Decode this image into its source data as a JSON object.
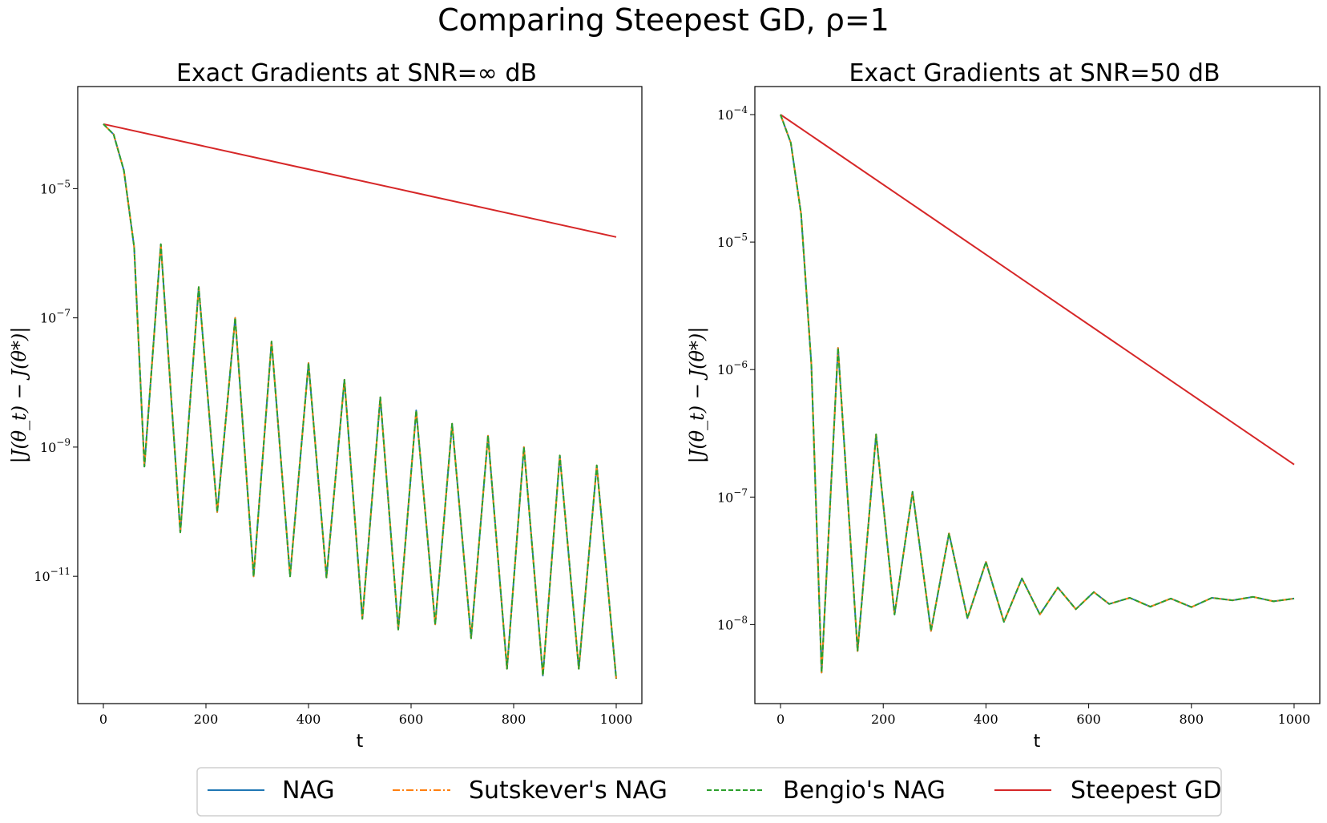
{
  "figure": {
    "title": "Comparing Steepest GD, ρ=1"
  },
  "legend": {
    "placement": "bottom-center",
    "items": [
      {
        "label": "NAG",
        "color": "#1f77b4",
        "dash": "solid"
      },
      {
        "label": "Sutskever's NAG",
        "color": "#ff7f0e",
        "dash": "dashdot"
      },
      {
        "label": "Bengio's NAG",
        "color": "#2ca02c",
        "dash": "dashed"
      },
      {
        "label": "Steepest GD",
        "color": "#d62728",
        "dash": "solid"
      }
    ]
  },
  "chart_data": [
    {
      "type": "line",
      "title": "Exact Gradients at SNR=∞ dB",
      "xlabel": "t",
      "ylabel": "|J(θ_t) − J(θ*)|",
      "xlim": [
        -50,
        1050
      ],
      "ylim_log10": [
        -12.97,
        -3.42
      ],
      "yscale": "log",
      "grid": false,
      "xticks": [
        "0",
        "200",
        "400",
        "600",
        "800",
        "1000"
      ],
      "xtick_values": [
        0,
        200,
        400,
        600,
        800,
        1000
      ],
      "yticks": [
        {
          "base": "10",
          "exp": "−5",
          "value_log10": -5
        },
        {
          "base": "10",
          "exp": "−7",
          "value_log10": -7
        },
        {
          "base": "10",
          "exp": "−9",
          "value_log10": -9
        },
        {
          "base": "10",
          "exp": "−11",
          "value_log10": -11
        }
      ],
      "series": [
        {
          "name": "Steepest GD",
          "x": [
            0,
            1000
          ],
          "y": [
            0.0001,
            1.78e-06
          ]
        },
        {
          "name": "NAG",
          "x": [
            0,
            20,
            40,
            60,
            80,
            112,
            150,
            186,
            222,
            257,
            293,
            328,
            364,
            400,
            435,
            470,
            505,
            540,
            575,
            610,
            647,
            680,
            717,
            750,
            787,
            820,
            857,
            890,
            927,
            962,
            1000
          ],
          "y": [
            0.0001,
            6.92e-05,
            1.91e-05,
            1.25e-06,
            5e-10,
            1.38e-06,
            4.8e-11,
            3e-07,
            9.9e-11,
            1e-07,
            1e-11,
            4.3e-08,
            1e-11,
            2e-08,
            9.6e-12,
            1.1e-08,
            2.2e-12,
            5.9e-09,
            1.5e-12,
            3.7e-09,
            1.8e-12,
            2.3e-09,
            1.1e-12,
            1.5e-09,
            3.7e-13,
            1e-09,
            2.9e-13,
            7.4e-10,
            3.7e-13,
            5.2e-10,
            2.6e-13
          ]
        },
        {
          "name": "Sutskever's NAG",
          "x": [
            0,
            20,
            40,
            60,
            80,
            112,
            150,
            186,
            222,
            257,
            293,
            328,
            364,
            400,
            435,
            470,
            505,
            540,
            575,
            610,
            647,
            680,
            717,
            750,
            787,
            820,
            857,
            890,
            927,
            962,
            1000
          ],
          "y": [
            0.0001,
            6.92e-05,
            1.91e-05,
            1.25e-06,
            5e-10,
            1.38e-06,
            4.8e-11,
            3e-07,
            9.9e-11,
            1e-07,
            1e-11,
            4.3e-08,
            1e-11,
            2e-08,
            9.6e-12,
            1.1e-08,
            2.2e-12,
            5.9e-09,
            1.5e-12,
            3.7e-09,
            1.8e-12,
            2.3e-09,
            1.1e-12,
            1.5e-09,
            3.7e-13,
            1e-09,
            2.9e-13,
            7.4e-10,
            3.7e-13,
            5.2e-10,
            2.6e-13
          ]
        },
        {
          "name": "Bengio's NAG",
          "x": [
            0,
            20,
            40,
            60,
            80,
            112,
            150,
            186,
            222,
            257,
            293,
            328,
            364,
            400,
            435,
            470,
            505,
            540,
            575,
            610,
            647,
            680,
            717,
            750,
            787,
            820,
            857,
            890,
            927,
            962,
            1000
          ],
          "y": [
            0.0001,
            6.92e-05,
            1.91e-05,
            1.25e-06,
            5e-10,
            1.38e-06,
            4.8e-11,
            3e-07,
            9.9e-11,
            1e-07,
            1e-11,
            4.3e-08,
            1e-11,
            2e-08,
            9.6e-12,
            1.1e-08,
            2.2e-12,
            5.9e-09,
            1.5e-12,
            3.7e-09,
            1.8e-12,
            2.3e-09,
            1.1e-12,
            1.5e-09,
            3.7e-13,
            1e-09,
            2.9e-13,
            7.4e-10,
            3.7e-13,
            5.2e-10,
            2.6e-13
          ]
        }
      ]
    },
    {
      "type": "line",
      "title": "Exact Gradients at SNR=50 dB",
      "xlabel": "t",
      "ylabel": "|J(θ_t) − J(θ*)|",
      "xlim": [
        -50,
        1050
      ],
      "ylim_log10": [
        -8.62,
        -3.78
      ],
      "yscale": "log",
      "grid": false,
      "xticks": [
        "0",
        "200",
        "400",
        "600",
        "800",
        "1000"
      ],
      "xtick_values": [
        0,
        200,
        400,
        600,
        800,
        1000
      ],
      "yticks": [
        {
          "base": "10",
          "exp": "−4",
          "value_log10": -4
        },
        {
          "base": "10",
          "exp": "−5",
          "value_log10": -5
        },
        {
          "base": "10",
          "exp": "−6",
          "value_log10": -6
        },
        {
          "base": "10",
          "exp": "−7",
          "value_log10": -7
        },
        {
          "base": "10",
          "exp": "−8",
          "value_log10": -8
        }
      ],
      "series": [
        {
          "name": "Steepest GD",
          "x": [
            0,
            1000
          ],
          "y": [
            0.0001,
            1.8e-07
          ]
        },
        {
          "name": "NAG",
          "x": [
            0,
            20,
            40,
            60,
            80,
            112,
            150,
            186,
            222,
            257,
            293,
            328,
            364,
            400,
            435,
            470,
            505,
            540,
            575,
            610,
            640,
            680,
            720,
            760,
            800,
            840,
            880,
            920,
            960,
            1000
          ],
          "y": [
            0.0001,
            6e-05,
            1.66e-05,
            1.1e-06,
            4.2e-09,
            1.48e-06,
            6.2e-09,
            3.1e-07,
            1.2e-08,
            1.1e-07,
            8.9e-09,
            5.2e-08,
            1.12e-08,
            3.1e-08,
            1.05e-08,
            2.3e-08,
            1.2e-08,
            1.95e-08,
            1.32e-08,
            1.8e-08,
            1.45e-08,
            1.62e-08,
            1.38e-08,
            1.6e-08,
            1.37e-08,
            1.62e-08,
            1.55e-08,
            1.65e-08,
            1.52e-08,
            1.6e-08
          ]
        },
        {
          "name": "Sutskever's NAG",
          "x": [
            0,
            20,
            40,
            60,
            80,
            112,
            150,
            186,
            222,
            257,
            293,
            328,
            364,
            400,
            435,
            470,
            505,
            540,
            575,
            610,
            640,
            680,
            720,
            760,
            800,
            840,
            880,
            920,
            960,
            1000
          ],
          "y": [
            0.0001,
            6e-05,
            1.66e-05,
            1.1e-06,
            4.2e-09,
            1.48e-06,
            6.2e-09,
            3.1e-07,
            1.2e-08,
            1.1e-07,
            8.9e-09,
            5.2e-08,
            1.12e-08,
            3.1e-08,
            1.05e-08,
            2.3e-08,
            1.2e-08,
            1.95e-08,
            1.32e-08,
            1.8e-08,
            1.45e-08,
            1.62e-08,
            1.38e-08,
            1.6e-08,
            1.37e-08,
            1.62e-08,
            1.55e-08,
            1.65e-08,
            1.52e-08,
            1.6e-08
          ]
        },
        {
          "name": "Bengio's NAG",
          "x": [
            0,
            20,
            40,
            60,
            80,
            112,
            150,
            186,
            222,
            257,
            293,
            328,
            364,
            400,
            435,
            470,
            505,
            540,
            575,
            610,
            640,
            680,
            720,
            760,
            800,
            840,
            880,
            920,
            960,
            1000
          ],
          "y": [
            0.0001,
            6e-05,
            1.66e-05,
            1.1e-06,
            4.2e-09,
            1.48e-06,
            6.2e-09,
            3.1e-07,
            1.2e-08,
            1.1e-07,
            8.9e-09,
            5.2e-08,
            1.12e-08,
            3.1e-08,
            1.05e-08,
            2.3e-08,
            1.2e-08,
            1.95e-08,
            1.32e-08,
            1.8e-08,
            1.45e-08,
            1.62e-08,
            1.38e-08,
            1.6e-08,
            1.37e-08,
            1.62e-08,
            1.55e-08,
            1.65e-08,
            1.52e-08,
            1.6e-08
          ]
        }
      ]
    }
  ]
}
